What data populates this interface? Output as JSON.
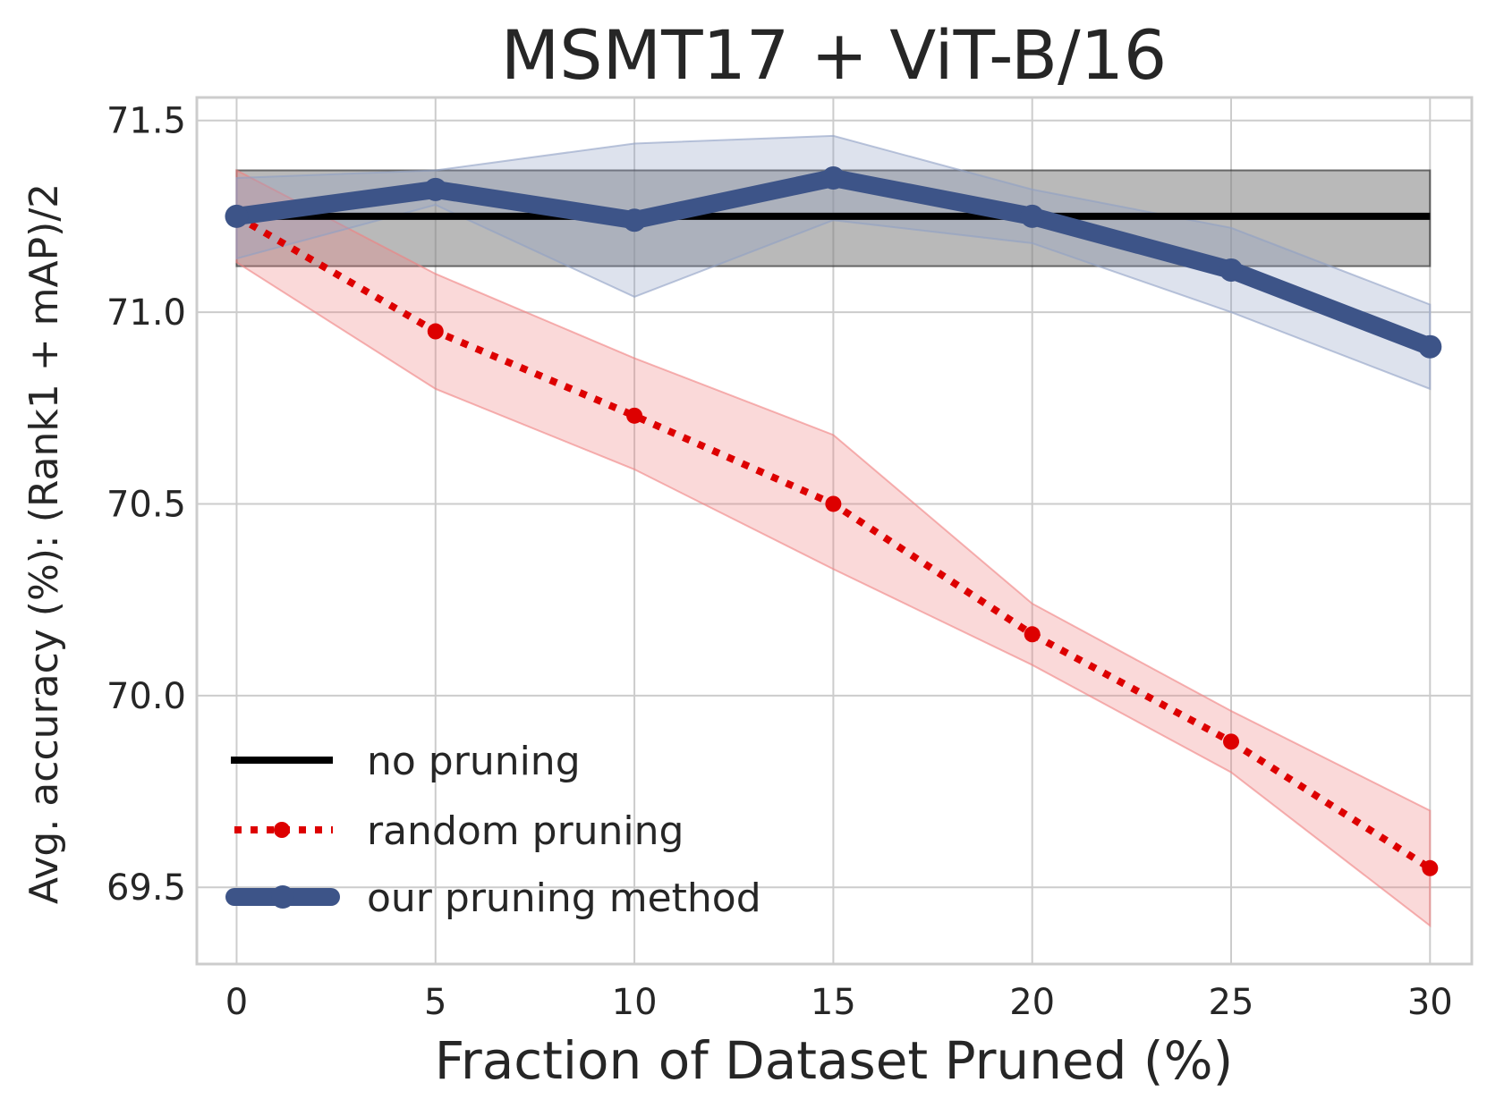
{
  "chart_data": {
    "type": "line",
    "title": "MSMT17 + ViT-B/16",
    "xlabel": "Fraction of Dataset Pruned (%)",
    "ylabel": "Avg. accuracy (%): (Rank1 + mAP)/2",
    "x": [
      0,
      5,
      10,
      15,
      20,
      25,
      30
    ],
    "xlim": [
      -1,
      31.05
    ],
    "ylim": [
      69.3,
      71.56
    ],
    "xticks": [
      "0",
      "5",
      "10",
      "15",
      "20",
      "25",
      "30"
    ],
    "yticks": [
      "69.5",
      "70.0",
      "70.5",
      "71.0",
      "71.5"
    ],
    "ytick_values": [
      69.5,
      70.0,
      70.5,
      71.0,
      71.5
    ],
    "grid": true,
    "legend_position": "lower-left",
    "series": [
      {
        "name": "no pruning",
        "style": "solid",
        "color": "#000000",
        "values": [
          71.25,
          71.25,
          71.25,
          71.25,
          71.25,
          71.25,
          71.25
        ],
        "band_lower": [
          71.12,
          71.12,
          71.12,
          71.12,
          71.12,
          71.12,
          71.12
        ],
        "band_upper": [
          71.37,
          71.37,
          71.37,
          71.37,
          71.37,
          71.37,
          71.37
        ],
        "band_color": "#808080"
      },
      {
        "name": "random pruning",
        "style": "dotted",
        "color": "#dd0000",
        "values": [
          71.25,
          70.95,
          70.73,
          70.5,
          70.16,
          69.88,
          69.55
        ],
        "band_lower": [
          71.13,
          70.8,
          70.59,
          70.33,
          70.08,
          69.8,
          69.4
        ],
        "band_upper": [
          71.37,
          71.1,
          70.88,
          70.68,
          70.24,
          69.96,
          69.7
        ],
        "band_color": "#f08080"
      },
      {
        "name": "our pruning method",
        "style": "solid-thick",
        "color": "#3d5488",
        "values": [
          71.25,
          71.32,
          71.24,
          71.35,
          71.25,
          71.11,
          70.91
        ],
        "band_lower": [
          71.14,
          71.28,
          71.04,
          71.24,
          71.18,
          71.0,
          70.8
        ],
        "band_upper": [
          71.35,
          71.37,
          71.44,
          71.46,
          71.32,
          71.22,
          71.02
        ],
        "band_color": "#8fa0c4"
      }
    ]
  }
}
